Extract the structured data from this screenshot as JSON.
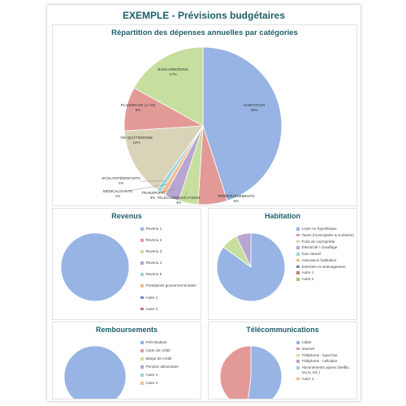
{
  "header": {
    "title": "EXEMPLE - Prévisions budgétaires"
  },
  "colors": {
    "blue": "#97b4e4",
    "red": "#e39a97",
    "green": "#c6df9e",
    "purple": "#b8a5d1",
    "teal": "#9fd4dc",
    "orange": "#f5bb8a",
    "navy": "#6d8bb8",
    "wine": "#c07a78",
    "olive": "#a8c07e",
    "yellow": "#eef0a8",
    "tan": "#d9d3b8"
  },
  "chart_data": [
    {
      "type": "pie",
      "title": "Répartition des dépenses annuelles par catégories",
      "slices": [
        {
          "label": "HABITATION",
          "value": 45,
          "display": "45%"
        },
        {
          "label": "REMBOURSEMENTS",
          "value": 6,
          "display": "6%"
        },
        {
          "label": "TÉLÉCOMMUNICATIONS",
          "value": 4,
          "display": "4%"
        },
        {
          "label": "TRANSPORT",
          "value": 3,
          "display": "3%"
        },
        {
          "label": "MÉDICAL/SANTÉ",
          "value": 1,
          "display": "1%"
        },
        {
          "label": "SCOLARITÉ/ENFANTS",
          "value": 1,
          "display": "1%"
        },
        {
          "label": "VIE QUOTIDIENNE",
          "value": 14,
          "display": "14%"
        },
        {
          "label": "PLAISIRS DE LA VIE",
          "value": 9,
          "display": "9%"
        },
        {
          "label": "BANCAIRE/DONS",
          "value": 17,
          "display": "17%"
        }
      ]
    },
    {
      "type": "pie",
      "title": "Revenus",
      "legend": [
        "Revenu 1",
        "Revenu 2",
        "Revenu 3",
        "Revenu 4",
        "Revenu 5",
        "Prestations gouvernementales",
        "Autre 1",
        "Autre 2"
      ],
      "values": [
        100,
        0,
        0,
        0,
        0,
        0,
        0,
        0
      ]
    },
    {
      "type": "pie",
      "title": "Habitation",
      "legend": [
        "Loyer ou hypothèque",
        "Taxes (municipales & scolaires)",
        "Frais de copropriété",
        "Électricité / chauffage",
        "Gaz naturel",
        "Assurance habitation",
        "Entretien et aménagement",
        "Autre 1",
        "Autre 2"
      ],
      "values": [
        85,
        0,
        8,
        7,
        0,
        0,
        0,
        0,
        0
      ]
    },
    {
      "type": "pie",
      "title": "Remboursements",
      "legend": [
        "Prêt étudiant",
        "Carte de crédit",
        "Marge de crédit",
        "Pension alimentaire",
        "Autre 1",
        "Autre 2"
      ],
      "values": [
        100,
        0,
        0,
        0,
        0,
        0
      ]
    },
    {
      "type": "pie",
      "title": "Télécommunications",
      "legend": [
        "Câble",
        "Internet",
        "Téléphone - ligne fixe",
        "Téléphone - cellulaire",
        "Abonnements autres (Netflix, tou.tv, etc.)",
        "Autre 1"
      ],
      "values": [
        52,
        48,
        0,
        0,
        0,
        0
      ]
    }
  ]
}
